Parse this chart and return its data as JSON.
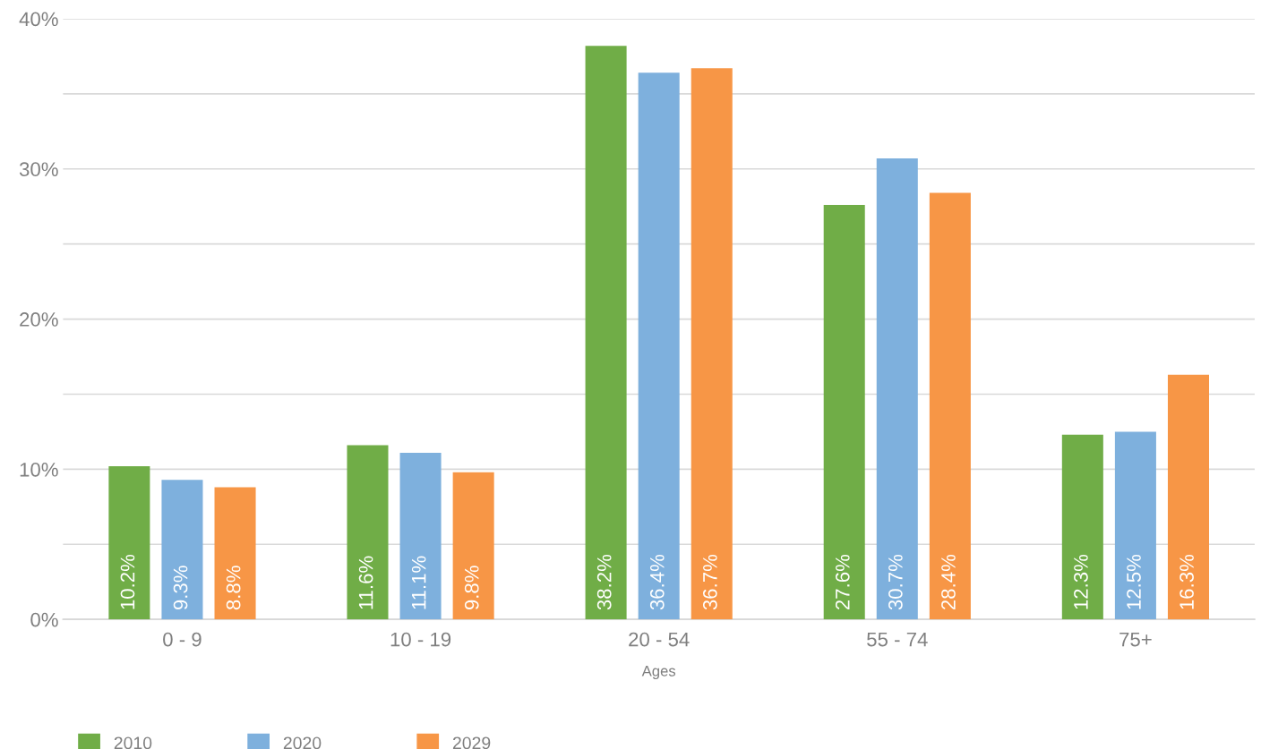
{
  "chart_data": {
    "type": "bar",
    "xlabel": "Ages",
    "categories": [
      "0 - 9",
      "10 - 19",
      "20 - 54",
      "55 - 74",
      "75+"
    ],
    "series": [
      {
        "name": "2010",
        "color": "#70ad47",
        "values": [
          10.2,
          11.6,
          38.2,
          27.6,
          12.3
        ],
        "value_labels": [
          "10.2%",
          "11.6%",
          "38.2%",
          "27.6%",
          "12.3%"
        ]
      },
      {
        "name": "2020",
        "color": "#7eb0dd",
        "values": [
          9.3,
          11.1,
          36.4,
          30.7,
          12.5
        ],
        "value_labels": [
          "9.3%",
          "11.1%",
          "36.4%",
          "30.7%",
          "12.5%"
        ]
      },
      {
        "name": "2029",
        "color": "#f79646",
        "values": [
          8.8,
          9.8,
          36.7,
          28.4,
          16.3
        ],
        "value_labels": [
          "8.8%",
          "9.8%",
          "36.7%",
          "28.4%",
          "16.3%"
        ]
      }
    ],
    "ylim": [
      0,
      40
    ],
    "yticks": [
      {
        "value": 0,
        "label": "0%"
      },
      {
        "value": 5,
        "label": null
      },
      {
        "value": 10,
        "label": "10%"
      },
      {
        "value": 15,
        "label": null
      },
      {
        "value": 20,
        "label": "20%"
      },
      {
        "value": 25,
        "label": null
      },
      {
        "value": 30,
        "label": "30%"
      },
      {
        "value": 35,
        "label": null
      },
      {
        "value": 40,
        "label": "40%"
      }
    ],
    "grid": "y",
    "legend": "bottom left"
  }
}
